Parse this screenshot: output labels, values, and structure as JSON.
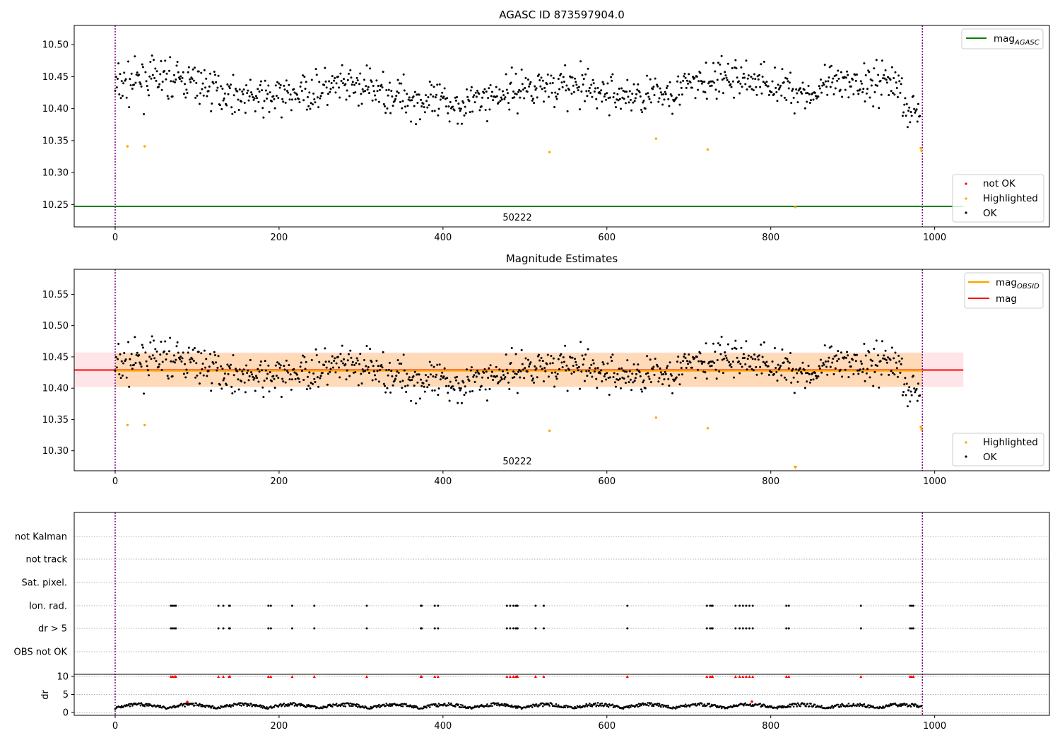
{
  "colors": {
    "ok": "#000000",
    "highlighted": "#ffa500",
    "not_ok": "#ff0000",
    "mag_agasc_line": "#008000",
    "mag_obsid_line": "#ffa500",
    "mag_line": "#ff0000",
    "obs_boundary": "#800080",
    "mag_obsid_band": "#ffdab9",
    "mag_band": "#ffe4e8",
    "grid": "#b0b0b0"
  },
  "chart_data": [
    {
      "type": "scatter",
      "title": "AGASC ID 873597904.0",
      "xlim": [
        -50,
        1140
      ],
      "ylim": [
        10.215,
        10.53
      ],
      "xticks": [
        0,
        200,
        400,
        600,
        800,
        1000
      ],
      "yticks": [
        10.25,
        10.3,
        10.35,
        10.4,
        10.45,
        10.5
      ],
      "ytick_labels": [
        "10.25",
        "10.30",
        "10.35",
        "10.40",
        "10.45",
        "10.50"
      ],
      "obs_boundaries": [
        0,
        985
      ],
      "obsid_label": "50222",
      "mag_agasc": 10.247,
      "mag_agasc_x_range": [
        -50,
        1035
      ],
      "series": [
        {
          "name": "not OK",
          "points": []
        },
        {
          "name": "Highlighted",
          "points": [
            [
              15,
              10.341
            ],
            [
              36,
              10.341
            ],
            [
              530,
              10.332
            ],
            [
              660,
              10.353
            ],
            [
              723,
              10.336
            ],
            [
              830,
              10.246
            ],
            [
              983,
              10.338
            ],
            [
              984,
              10.334
            ]
          ]
        },
        {
          "name": "OK",
          "n_points": 985
        }
      ],
      "legend_upper": [
        {
          "label": "mag",
          "subscript": "AGASC",
          "color": "#008000"
        }
      ],
      "legend_lower": [
        "not OK",
        "Highlighted",
        "OK"
      ]
    },
    {
      "type": "scatter",
      "title": "Magnitude Estimates",
      "xlim": [
        -50,
        1140
      ],
      "ylim": [
        10.268,
        10.59
      ],
      "xticks": [
        0,
        200,
        400,
        600,
        800,
        1000
      ],
      "yticks": [
        10.3,
        10.35,
        10.4,
        10.45,
        10.5,
        10.55
      ],
      "ytick_labels": [
        "10.30",
        "10.35",
        "10.40",
        "10.45",
        "10.50",
        "10.55"
      ],
      "obs_boundaries": [
        0,
        985
      ],
      "obsid_label": "50222",
      "mag_obsid": 10.428,
      "mag_obsid_band": [
        10.402,
        10.456
      ],
      "mag_obsid_x_range": [
        0,
        985
      ],
      "mag": 10.429,
      "mag_band": [
        10.402,
        10.457
      ],
      "mag_x_range": [
        -50,
        1035
      ],
      "off_axis_marker": [
        830,
        10.27
      ],
      "series": [
        {
          "name": "Highlighted",
          "points": [
            [
              15,
              10.341
            ],
            [
              36,
              10.341
            ],
            [
              530,
              10.332
            ],
            [
              660,
              10.353
            ],
            [
              723,
              10.336
            ],
            [
              983,
              10.338
            ],
            [
              984,
              10.334
            ]
          ]
        },
        {
          "name": "OK",
          "n_points": 985
        }
      ],
      "legend_upper": [
        {
          "label": "mag",
          "subscript": "OBSID",
          "color": "#ffa500"
        },
        {
          "label": "mag",
          "subscript": "",
          "color": "#ff0000"
        }
      ],
      "legend_lower": [
        "Highlighted",
        "OK"
      ]
    },
    {
      "type": "scatter",
      "title": "",
      "xlim": [
        -50,
        1140
      ],
      "xticks": [
        0,
        200,
        400,
        600,
        800,
        1000
      ],
      "flag_categories": [
        "not Kalman",
        "not track",
        "Sat. pixel.",
        "Ion. rad.",
        "dr > 5",
        "OBS not OK"
      ],
      "flag_x": [
        68,
        70,
        72,
        74,
        126,
        132,
        139,
        140,
        187,
        190,
        216,
        243,
        307,
        373,
        374,
        390,
        394,
        478,
        482,
        486,
        489,
        490,
        491,
        513,
        523,
        625,
        722,
        726,
        728,
        729,
        757,
        762,
        766,
        770,
        774,
        778,
        819,
        822,
        910,
        970,
        972,
        974
      ],
      "flags_per_category": {
        "not Kalman": [],
        "not track": [],
        "Sat. pixel.": [],
        "Ion. rad.": "flag_x",
        "dr > 5": "flag_x",
        "OBS not OK": []
      },
      "dr_ylabel": "dr",
      "dr_ylim": [
        -0.8,
        10.6
      ],
      "dr_yticks": [
        0,
        5,
        10
      ],
      "dr_clip": 10,
      "dr_typical_range": [
        0.2,
        2.8
      ],
      "dr_outliers": [
        [
          88,
          2.9
        ],
        [
          777,
          3.0
        ]
      ]
    }
  ]
}
